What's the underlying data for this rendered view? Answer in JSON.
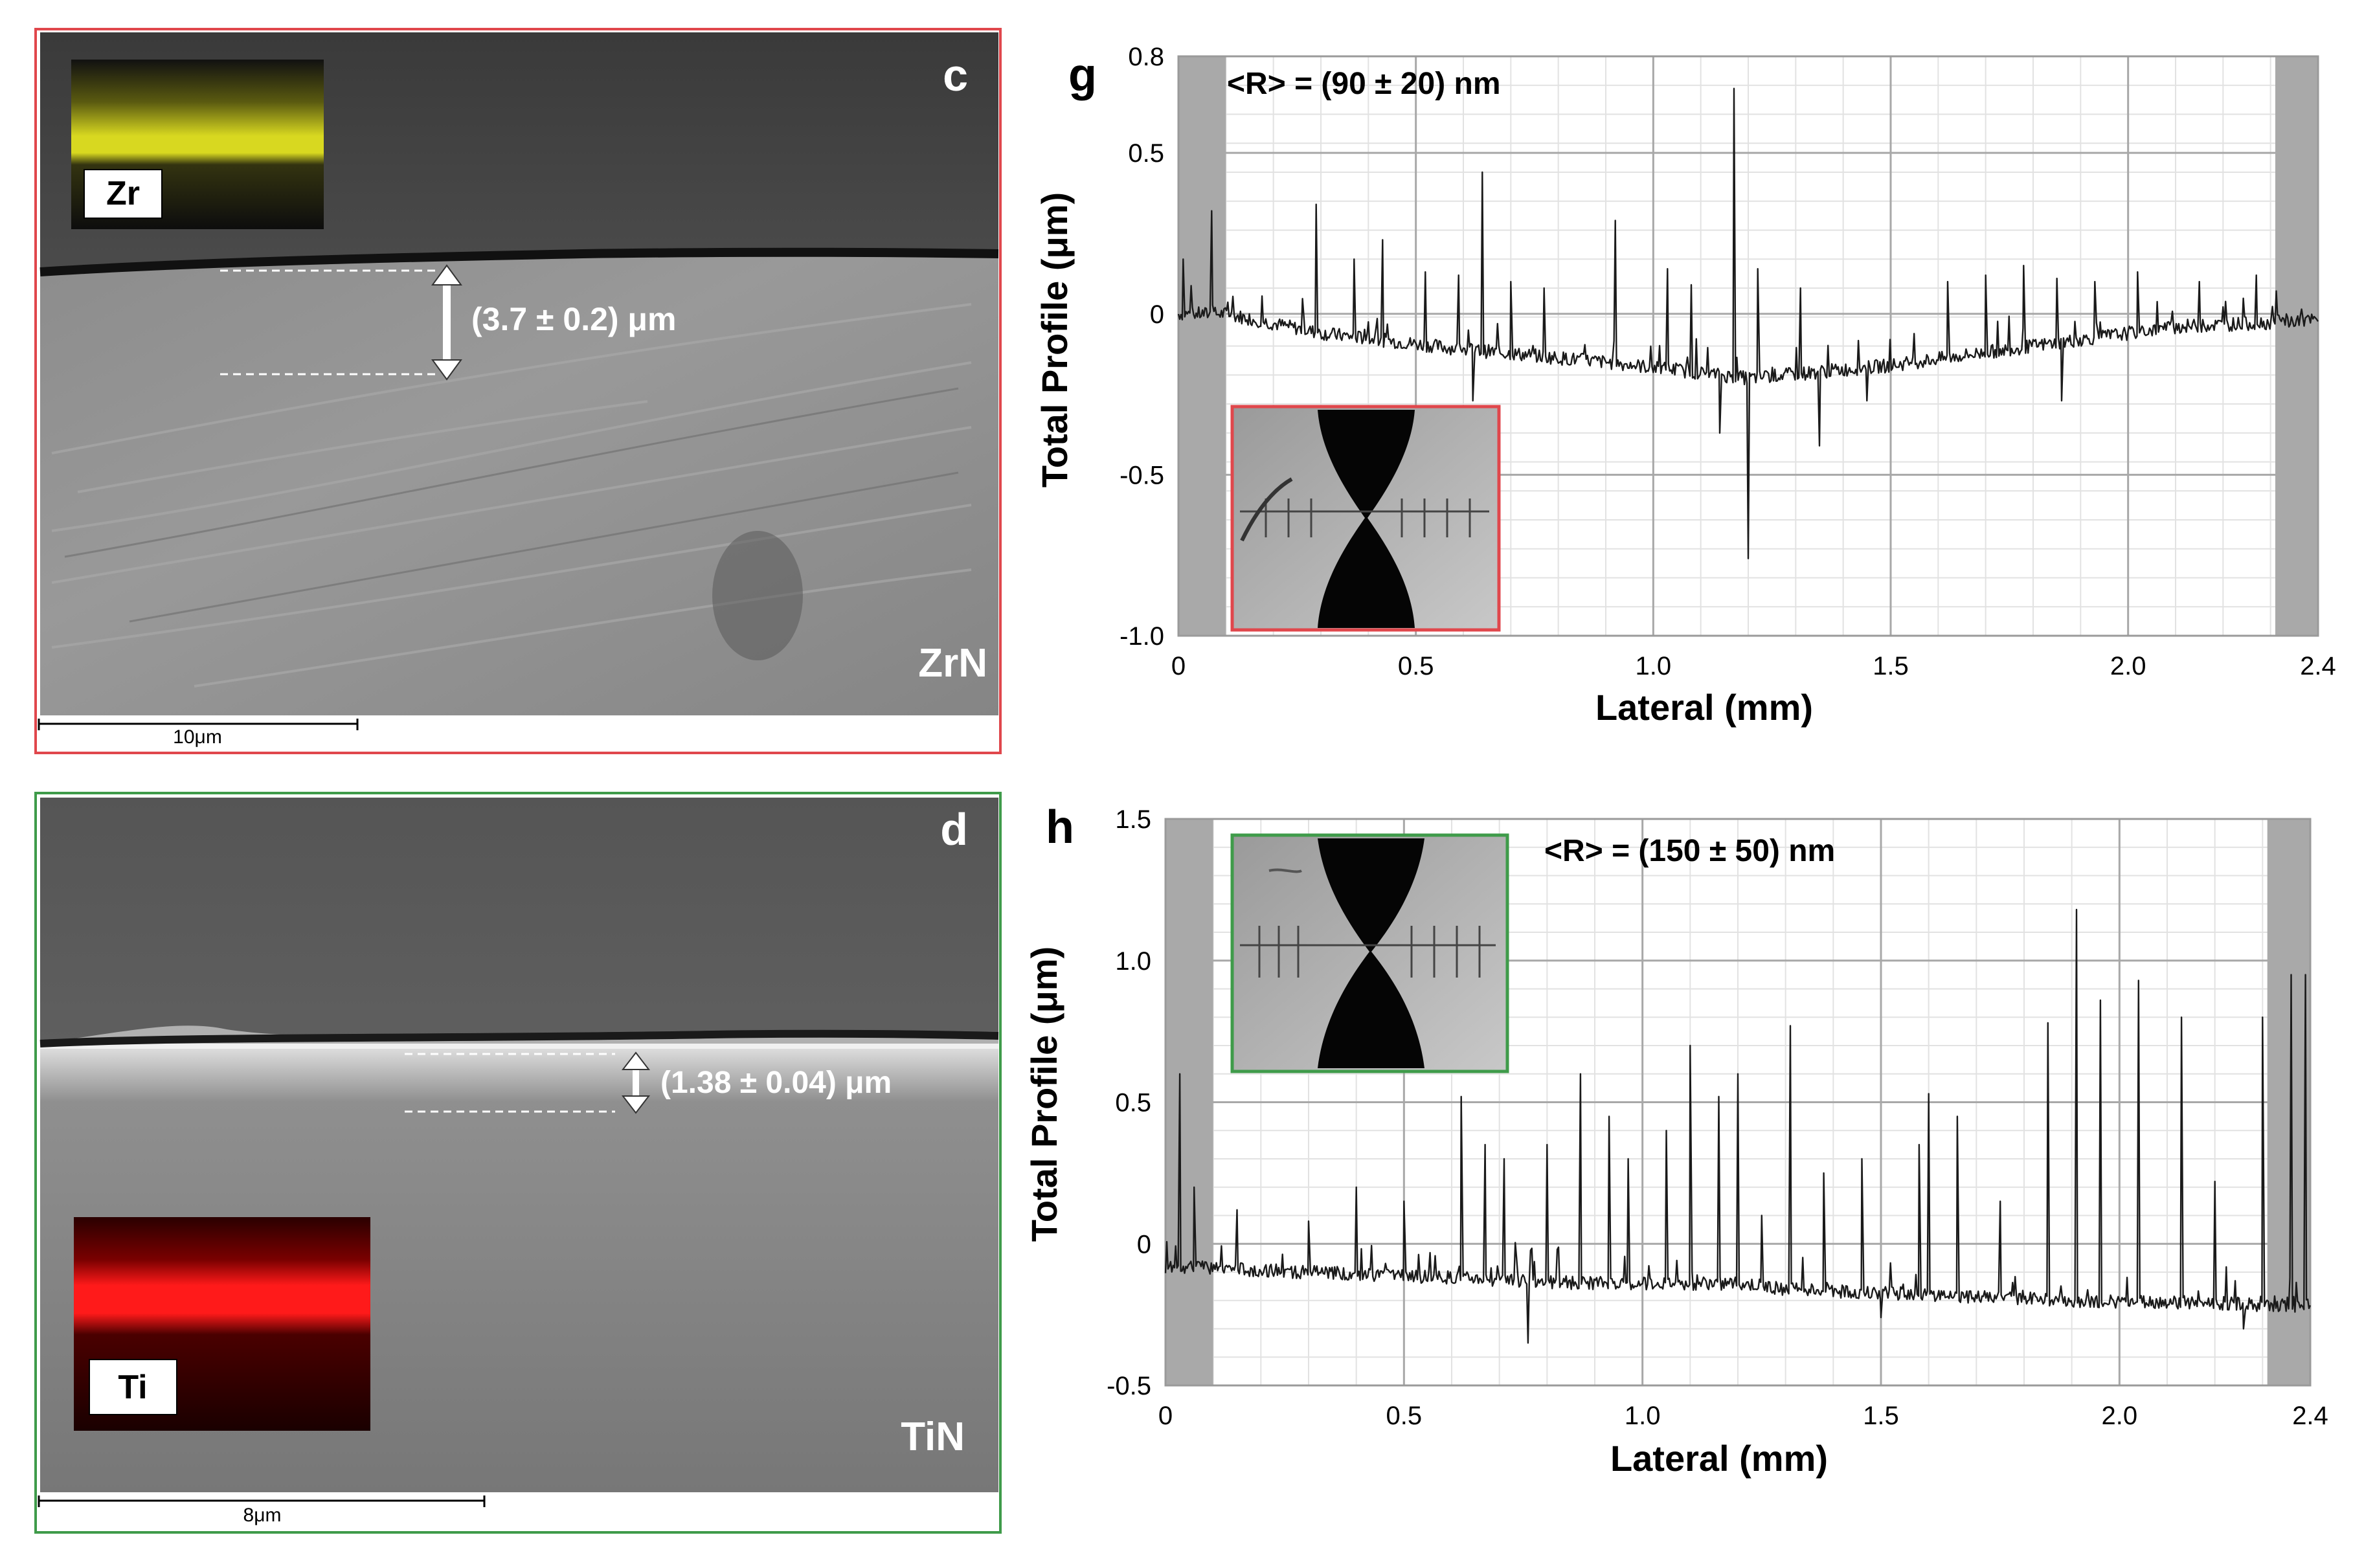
{
  "sem_panels": [
    {
      "letter": "c",
      "material": "ZrN",
      "eds_label": "Zr",
      "thickness": "(3.7 ± 0.2) μm",
      "scalebar": "10μm",
      "border_color": "#e0474c",
      "eds_color": "#d8d820"
    },
    {
      "letter": "d",
      "material": "TiN",
      "eds_label": "Ti",
      "thickness": "(1.38 ± 0.04) μm",
      "scalebar": "8μm",
      "border_color": "#3f9b4a",
      "eds_color": "#ff1a1a"
    }
  ],
  "chart_data": [
    {
      "type": "line",
      "panel_letter": "g",
      "annotation": "<R> = (90 ± 20) nm",
      "xlabel": "Lateral (mm)",
      "ylabel": "Total Profile (μm)",
      "xlim": [
        0,
        2.4
      ],
      "ylim": [
        -1.0,
        0.8
      ],
      "x_ticks": [
        0,
        0.5,
        1.0,
        1.5,
        2.0,
        2.4
      ],
      "x_tick_labels": [
        "0",
        "0.5",
        "1.0",
        "1.5",
        "2.0",
        "2.4"
      ],
      "y_ticks": [
        0.8,
        0.5,
        0,
        -0.5,
        -1.0
      ],
      "y_tick_labels": [
        "0.8",
        "0.5",
        "0",
        "-0.5",
        "-1.0"
      ],
      "shaded_regions": [
        [
          0,
          0.1
        ],
        [
          2.31,
          2.4
        ]
      ],
      "grid": true,
      "inset_border": "#e0474c",
      "baseline": [
        [
          0.0,
          0.0
        ],
        [
          0.1,
          0.0
        ],
        [
          0.3,
          -0.06
        ],
        [
          0.6,
          -0.11
        ],
        [
          0.9,
          -0.15
        ],
        [
          1.2,
          -0.2
        ],
        [
          1.5,
          -0.16
        ],
        [
          1.8,
          -0.1
        ],
        [
          2.1,
          -0.04
        ],
        [
          2.4,
          -0.02
        ]
      ],
      "spikes": [
        [
          0.01,
          0.17
        ],
        [
          0.07,
          0.32
        ],
        [
          0.29,
          0.34
        ],
        [
          0.37,
          0.17
        ],
        [
          0.43,
          0.23
        ],
        [
          0.52,
          0.13
        ],
        [
          0.59,
          0.12
        ],
        [
          0.64,
          0.44
        ],
        [
          0.7,
          0.1
        ],
        [
          0.77,
          0.08
        ],
        [
          0.92,
          0.29
        ],
        [
          1.03,
          0.14
        ],
        [
          1.08,
          0.09
        ],
        [
          1.17,
          0.7
        ],
        [
          1.22,
          0.14
        ],
        [
          1.31,
          0.08
        ],
        [
          1.62,
          0.1
        ],
        [
          1.7,
          0.12
        ],
        [
          1.78,
          0.15
        ],
        [
          1.85,
          0.11
        ],
        [
          1.93,
          0.1
        ],
        [
          2.02,
          0.13
        ],
        [
          2.15,
          0.1
        ],
        [
          2.27,
          0.12
        ]
      ],
      "dips": [
        [
          0.62,
          -0.27
        ],
        [
          1.14,
          -0.37
        ],
        [
          1.2,
          -0.76
        ],
        [
          1.35,
          -0.41
        ],
        [
          1.45,
          -0.27
        ],
        [
          1.86,
          -0.27
        ]
      ]
    },
    {
      "type": "line",
      "panel_letter": "h",
      "annotation": "<R> = (150 ± 50) nm",
      "xlabel": "Lateral (mm)",
      "ylabel": "Total Profile (μm)",
      "xlim": [
        0,
        2.4
      ],
      "ylim": [
        -0.5,
        1.5
      ],
      "x_ticks": [
        0,
        0.5,
        1.0,
        1.5,
        2.0,
        2.4
      ],
      "x_tick_labels": [
        "0",
        "0.5",
        "1.0",
        "1.5",
        "2.0",
        "2.4"
      ],
      "y_ticks": [
        1.5,
        1.0,
        0.5,
        0,
        -0.5
      ],
      "y_tick_labels": [
        "1.5",
        "1.0",
        "0.5",
        "0",
        "-0.5"
      ],
      "shaded_regions": [
        [
          0,
          0.1
        ],
        [
          2.31,
          2.4
        ]
      ],
      "grid": true,
      "inset_border": "#3f9b4a",
      "baseline": [
        [
          0.0,
          -0.08
        ],
        [
          0.3,
          -0.1
        ],
        [
          0.6,
          -0.12
        ],
        [
          0.9,
          -0.14
        ],
        [
          1.2,
          -0.14
        ],
        [
          1.3,
          -0.16
        ],
        [
          1.6,
          -0.18
        ],
        [
          1.9,
          -0.2
        ],
        [
          2.2,
          -0.21
        ],
        [
          2.4,
          -0.22
        ]
      ],
      "spikes": [
        [
          0.03,
          0.6
        ],
        [
          0.06,
          0.2
        ],
        [
          0.15,
          0.12
        ],
        [
          0.3,
          0.08
        ],
        [
          0.4,
          0.2
        ],
        [
          0.5,
          0.15
        ],
        [
          0.62,
          0.52
        ],
        [
          0.67,
          0.35
        ],
        [
          0.71,
          0.3
        ],
        [
          0.8,
          0.35
        ],
        [
          0.87,
          0.6
        ],
        [
          0.93,
          0.45
        ],
        [
          0.97,
          0.3
        ],
        [
          1.05,
          0.4
        ],
        [
          1.1,
          0.7
        ],
        [
          1.16,
          0.52
        ],
        [
          1.2,
          0.6
        ],
        [
          1.25,
          0.1
        ],
        [
          1.31,
          0.77
        ],
        [
          1.38,
          0.25
        ],
        [
          1.46,
          0.3
        ],
        [
          1.58,
          0.35
        ],
        [
          1.6,
          0.53
        ],
        [
          1.66,
          0.45
        ],
        [
          1.75,
          0.15
        ],
        [
          1.85,
          0.78
        ],
        [
          1.91,
          1.18
        ],
        [
          1.96,
          0.86
        ],
        [
          2.04,
          0.93
        ],
        [
          2.13,
          0.8
        ],
        [
          2.2,
          0.22
        ],
        [
          2.3,
          0.8
        ],
        [
          2.36,
          0.95
        ],
        [
          2.39,
          0.95
        ]
      ],
      "dips": [
        [
          0.76,
          -0.35
        ],
        [
          1.5,
          -0.26
        ],
        [
          2.26,
          -0.3
        ]
      ]
    }
  ]
}
